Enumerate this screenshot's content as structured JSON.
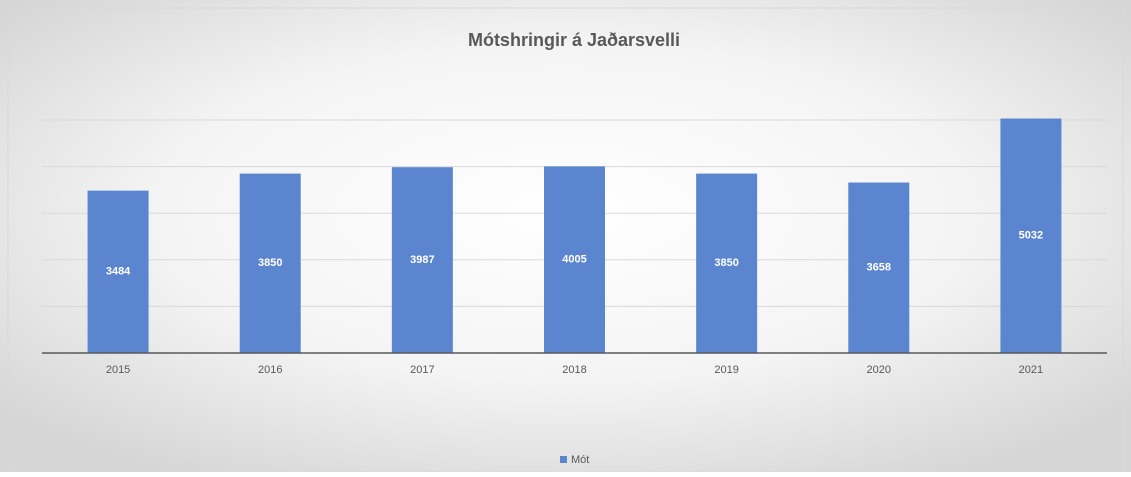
{
  "chart_data": {
    "type": "bar",
    "title": "Mótshringir á Jaðarsvelli",
    "categories": [
      "2015",
      "2016",
      "2017",
      "2018",
      "2019",
      "2020",
      "2021"
    ],
    "series": [
      {
        "name": "Mót",
        "color": "#5b86cf",
        "values": [
          3484,
          3850,
          3987,
          4005,
          3850,
          3658,
          5032
        ]
      }
    ],
    "ylim": [
      0,
      5000
    ],
    "yticks": [
      0,
      1000,
      2000,
      3000,
      4000,
      5000
    ],
    "grid": true,
    "legend": "bottom"
  }
}
